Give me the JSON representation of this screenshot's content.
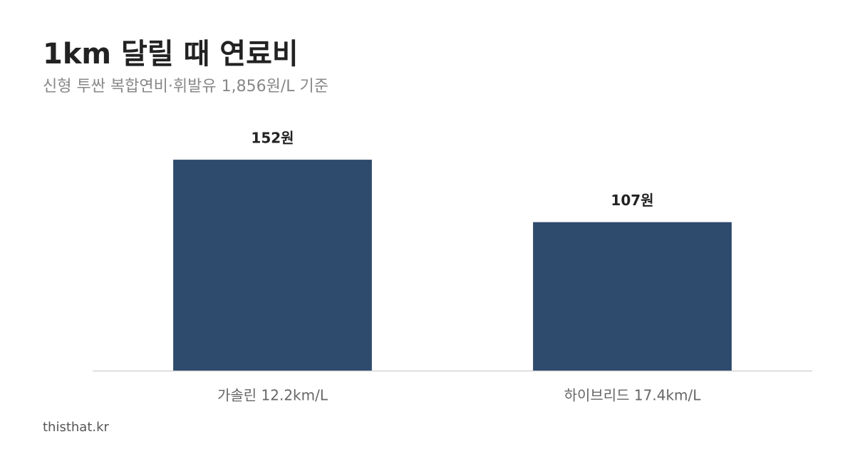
{
  "chart_data": {
    "type": "bar",
    "title": "1km 달릴 때 연료비",
    "subtitle": "신형 투싼 복합연비·휘발유 1,856원/L 기준",
    "categories": [
      "가솔린 12.2km/L",
      "하이브리드 17.4km/L"
    ],
    "values": [
      152,
      107
    ],
    "value_labels": [
      "152원",
      "107원"
    ],
    "color": "#2e4a6d",
    "ylim": [
      0,
      160
    ],
    "source": "thisthat.kr"
  }
}
